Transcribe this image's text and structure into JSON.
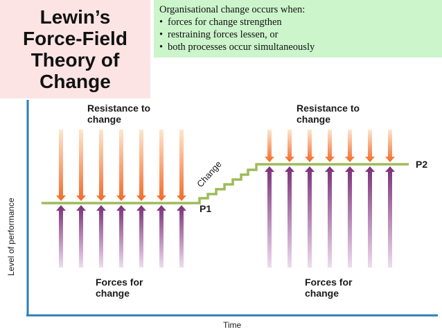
{
  "title": {
    "lines": [
      "Lewin’s",
      "Force-Field",
      "Theory of",
      "Change"
    ]
  },
  "note": {
    "intro": "Organisational change occurs when:",
    "bullets": [
      "forces for change strengthen",
      "restraining forces lessen, or",
      "both processes occur simultaneously"
    ],
    "bullet_symbol": "•"
  },
  "diagram": {
    "y_axis_label": "Level of performance",
    "x_axis_label": "Time",
    "left": {
      "resistance_label": [
        "Resistance to",
        "change"
      ],
      "forces_label": [
        "Forces for",
        "change"
      ],
      "level_label": "P1",
      "arrow_count": 7
    },
    "right": {
      "resistance_label": [
        "Resistance to",
        "change"
      ],
      "forces_label": [
        "Forces for",
        "change"
      ],
      "level_label": "P2",
      "arrow_count": 7
    },
    "change_label": "Change",
    "colors": {
      "axis": "#2a7fb8",
      "level_line": "#9dbb5a",
      "resistance_top": "#fde6cf",
      "resistance_bottom": "#f26b2a",
      "forces_top": "#7a2f78",
      "forces_bottom": "#eedcee"
    }
  }
}
